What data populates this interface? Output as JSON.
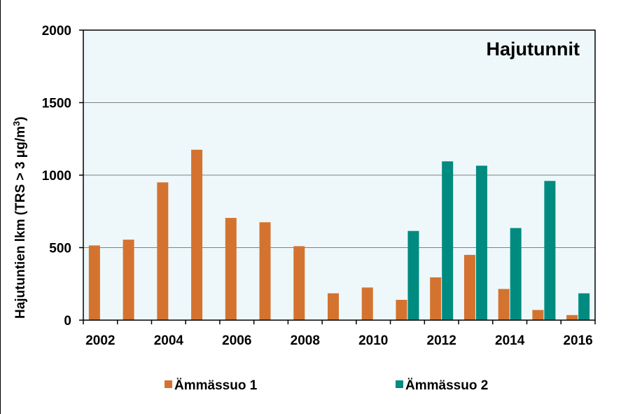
{
  "chart_data": {
    "type": "bar",
    "title": "Hajutunnit",
    "ylabel_main": "Hajutuntien lkm (TRS > 3 μg/m",
    "ylabel_sup": "3",
    "ylabel_end": ")",
    "xlabel": "",
    "ylim": [
      0,
      2000
    ],
    "yticks": [
      0,
      500,
      1000,
      1500,
      2000
    ],
    "categories": [
      "2002",
      "2003",
      "2004",
      "2005",
      "2006",
      "2007",
      "2008",
      "2009",
      "2010",
      "2011",
      "2012",
      "2013",
      "2014",
      "2015",
      "2016"
    ],
    "xtick_labels": [
      "2002",
      "2004",
      "2006",
      "2008",
      "2010",
      "2012",
      "2014",
      "2016"
    ],
    "series": [
      {
        "name": "Ämmässuo 1",
        "color": "#d4732f",
        "values": [
          515,
          555,
          950,
          1175,
          705,
          675,
          510,
          185,
          225,
          140,
          295,
          450,
          215,
          70,
          35
        ]
      },
      {
        "name": "Ämmässuo 2",
        "color": "#008b80",
        "values": [
          null,
          null,
          null,
          null,
          null,
          null,
          null,
          null,
          null,
          615,
          1095,
          1065,
          635,
          960,
          185
        ]
      }
    ],
    "grid": true,
    "legend_position": "bottom",
    "plot_background": "#eef8fa"
  }
}
